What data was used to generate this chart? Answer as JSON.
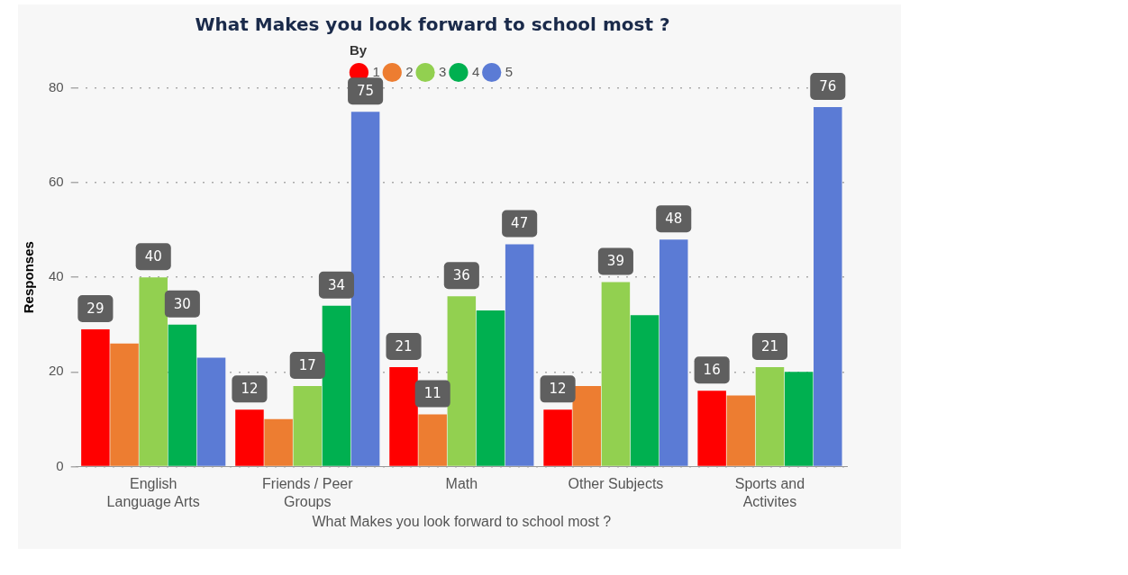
{
  "chart_data": {
    "type": "bar",
    "title": "What Makes you look forward to school most ?",
    "xlabel": "What Makes you look forward to school most ?",
    "ylabel": "Responses",
    "legend_title": "By",
    "categories": [
      "English Language Arts",
      "Friends / Peer Groups",
      "Math",
      "Other Subjects",
      "Sports and Activites"
    ],
    "series": [
      {
        "name": "1",
        "color": "#ff0000",
        "values": [
          29,
          12,
          21,
          12,
          16
        ],
        "value_labels": [
          "29",
          "12",
          "21",
          "12",
          "16"
        ]
      },
      {
        "name": "2",
        "color": "#ed7d31",
        "values": [
          26,
          10,
          11,
          17,
          15
        ],
        "value_labels": [
          null,
          null,
          "11",
          null,
          null
        ]
      },
      {
        "name": "3",
        "color": "#92d050",
        "values": [
          40,
          17,
          36,
          39,
          21
        ],
        "value_labels": [
          "40",
          "17",
          "36",
          "39",
          "21"
        ]
      },
      {
        "name": "4",
        "color": "#00b050",
        "values": [
          30,
          34,
          33,
          32,
          20
        ],
        "value_labels": [
          "30",
          "34",
          null,
          null,
          null
        ]
      },
      {
        "name": "5",
        "color": "#5b7bd5",
        "values": [
          23,
          75,
          47,
          48,
          76
        ],
        "value_labels": [
          null,
          "75",
          "47",
          "48",
          "76"
        ]
      }
    ],
    "ylim": [
      0,
      80
    ],
    "yticks": [
      0,
      20,
      40,
      60,
      80
    ],
    "grid": "y",
    "legend": "top"
  }
}
